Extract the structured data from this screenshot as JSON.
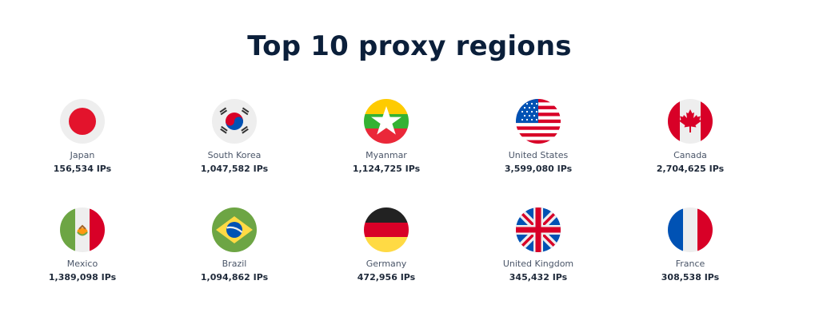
{
  "title": "Top 10 proxy regions",
  "regions": [
    {
      "name": "Japan",
      "count": "156,534 IPs",
      "flag": "japan-flag-icon"
    },
    {
      "name": "South Korea",
      "count": "1,047,582 IPs",
      "flag": "south-korea-flag-icon"
    },
    {
      "name": "Myanmar",
      "count": "1,124,725 IPs",
      "flag": "myanmar-flag-icon"
    },
    {
      "name": "United States",
      "count": "3,599,080 IPs",
      "flag": "united-states-flag-icon"
    },
    {
      "name": "Canada",
      "count": "2,704,625 IPs",
      "flag": "canada-flag-icon"
    },
    {
      "name": "Mexico",
      "count": "1,389,098 IPs",
      "flag": "mexico-flag-icon"
    },
    {
      "name": "Brazil",
      "count": "1,094,862 IPs",
      "flag": "brazil-flag-icon"
    },
    {
      "name": "Germany",
      "count": "472,956 IPs",
      "flag": "germany-flag-icon"
    },
    {
      "name": "United Kingdom",
      "count": "345,432 IPs",
      "flag": "united-kingdom-flag-icon"
    },
    {
      "name": "France",
      "count": "308,538 IPs",
      "flag": "france-flag-icon"
    }
  ],
  "colors": {
    "title": "#0b1f3a",
    "name": "#4a5568",
    "count": "#1f2a3a"
  }
}
